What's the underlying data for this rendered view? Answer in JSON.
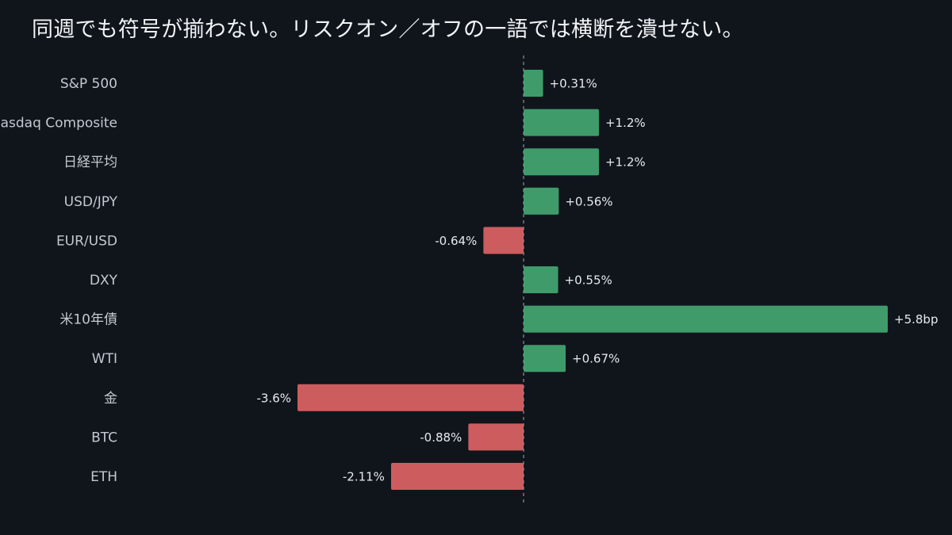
{
  "colors": {
    "background": "#10151c",
    "positive": "#3f9b6a",
    "negative": "#cd5c5f",
    "zero_line": "#8a919b"
  },
  "chart_data": {
    "type": "bar",
    "orientation": "horizontal",
    "title": "同週でも符号が揃わない。リスクオン／オフの一語では横断を潰せない。",
    "categories": [
      "S&P 500",
      "Nasdaq Composite",
      "日経平均",
      "USD/JPY",
      "EUR/USD",
      "DXY",
      "米10年債",
      "WTI",
      "金",
      "BTC",
      "ETH"
    ],
    "values": [
      0.31,
      1.2,
      1.2,
      0.56,
      -0.64,
      0.55,
      5.8,
      0.67,
      -3.6,
      -0.88,
      -2.11
    ],
    "value_labels": [
      "+0.31%",
      "+1.2%",
      "+1.2%",
      "+0.56%",
      "-0.64%",
      "+0.55%",
      "+5.8bp",
      "+0.67%",
      "-3.6%",
      "-0.88%",
      "-2.11%"
    ],
    "xlim": [
      -3.6,
      5.8
    ],
    "zero_line": "dashed",
    "grid": false,
    "legend": "none",
    "xlabel": "",
    "ylabel": ""
  }
}
